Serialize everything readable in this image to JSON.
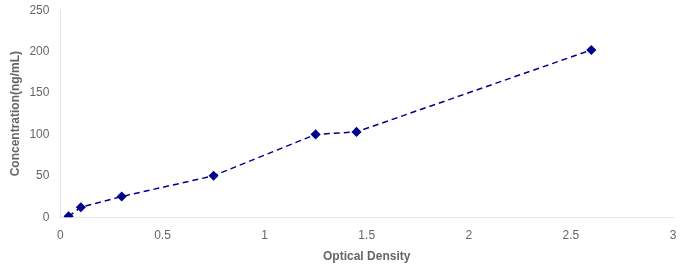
{
  "chart_data": {
    "type": "line",
    "x": [
      0.04,
      0.1,
      0.3,
      0.75,
      1.25,
      1.45,
      2.6
    ],
    "values": [
      1,
      12,
      25,
      50,
      100,
      103,
      202
    ],
    "color": "#00008B",
    "marker": "diamond",
    "line_style": "dashed",
    "xlabel": "Optical Density",
    "ylabel": "Concentration(ng/mL)",
    "xlim": [
      0,
      3
    ],
    "ylim": [
      0,
      250
    ],
    "xticks": [
      0,
      0.5,
      1,
      1.5,
      2,
      2.5,
      3
    ],
    "yticks": [
      0,
      50,
      100,
      150,
      200,
      250
    ],
    "grid": false
  }
}
